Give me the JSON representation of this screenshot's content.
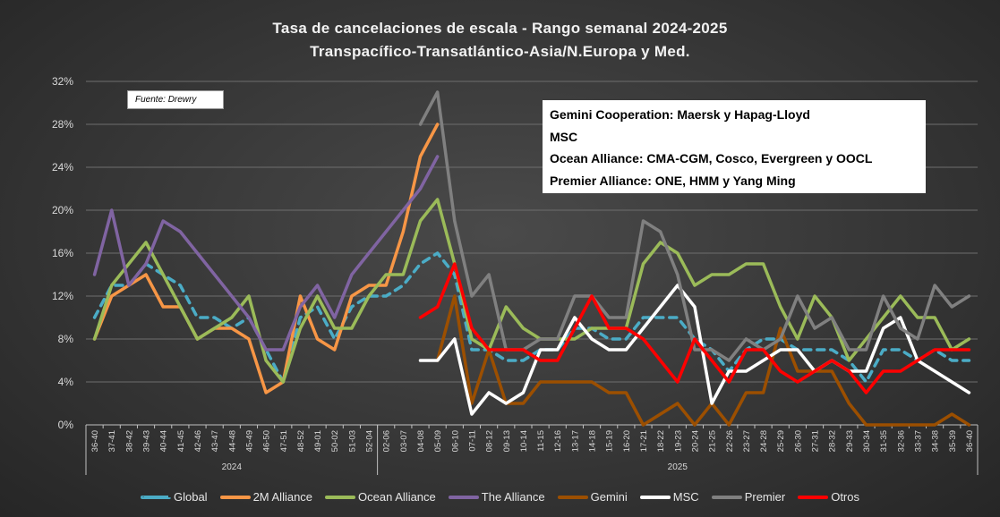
{
  "title": {
    "line1": "Tasa de cancelaciones de escala - Rango semanal 2024-2025",
    "line2": "Transpacífico-Transatlántico-Asia/N.Europa y Med."
  },
  "source_label": "Fuente: Drewry",
  "notes": [
    "Gemini Cooperation: Maersk y Hapag-Lloyd",
    "MSC",
    "Ocean Alliance: CMA-CGM, Cosco, Evergreen y OOCL",
    "Premier Alliance: ONE, HMM y Yang Ming"
  ],
  "chart_data": {
    "type": "line",
    "title": "Tasa de cancelaciones de escala - Rango semanal 2024-2025",
    "subtitle": "Transpacífico-Transatlántico-Asia/N.Europa y Med.",
    "xlabel": "",
    "ylabel": "",
    "ylim": [
      0,
      32
    ],
    "yticks": [
      0,
      4,
      8,
      12,
      16,
      20,
      24,
      28,
      32
    ],
    "ytick_labels": [
      "0%",
      "4%",
      "8%",
      "12%",
      "16%",
      "20%",
      "24%",
      "28%",
      "32%"
    ],
    "grid": true,
    "legend_position": "bottom",
    "categories": [
      "36-40",
      "37-41",
      "38-42",
      "39-43",
      "40-44",
      "41-45",
      "42-46",
      "43-47",
      "44-48",
      "45-49",
      "46-50",
      "47-51",
      "48-52",
      "49-01",
      "50-02",
      "51-03",
      "52-04",
      "02-06",
      "03-07",
      "04-08",
      "05-09",
      "06-10",
      "07-11",
      "08-12",
      "09-13",
      "10-14",
      "11-15",
      "12-16",
      "13-17",
      "14-18",
      "15-19",
      "16-20",
      "17-21",
      "18-22",
      "19-23",
      "20-24",
      "21-25",
      "22-26",
      "23-27",
      "24-28",
      "25-29",
      "26-30",
      "27-31",
      "28-32",
      "29-33",
      "30-34",
      "31-35",
      "32-36",
      "33-37",
      "34-38",
      "35-39",
      "36-40"
    ],
    "year_groups": [
      {
        "label": "2024",
        "start": 0,
        "end": 16
      },
      {
        "label": "2025",
        "start": 17,
        "end": 51
      }
    ],
    "series": [
      {
        "name": "Global",
        "color": "#4bacc6",
        "dashed": true,
        "values": [
          10,
          13,
          13,
          15,
          14,
          13,
          10,
          10,
          9,
          10,
          7,
          4,
          10,
          11,
          8,
          11,
          12,
          12,
          13,
          15,
          16,
          14,
          7,
          7,
          6,
          6,
          7,
          7,
          9,
          9,
          8,
          8,
          10,
          10,
          10,
          8,
          7,
          5,
          7,
          8,
          8,
          7,
          7,
          7,
          6,
          4,
          7,
          7,
          6,
          7,
          6,
          6
        ]
      },
      {
        "name": "2M Alliance",
        "color": "#f79646",
        "dashed": false,
        "values": [
          8,
          12,
          13,
          14,
          11,
          11,
          8,
          9,
          9,
          8,
          3,
          4,
          12,
          8,
          7,
          12,
          13,
          13,
          18,
          25,
          28,
          null,
          null,
          null,
          null,
          null,
          null,
          null,
          null,
          null,
          null,
          null,
          null,
          null,
          null,
          null,
          null,
          null,
          null,
          null,
          null,
          null,
          null,
          null,
          null,
          null,
          null,
          null,
          null,
          null,
          null,
          null
        ]
      },
      {
        "name": "Ocean Alliance",
        "color": "#9bbb59",
        "dashed": false,
        "values": [
          8,
          13,
          15,
          17,
          14,
          11,
          8,
          9,
          10,
          12,
          6,
          4,
          9,
          12,
          9,
          9,
          12,
          14,
          14,
          19,
          21,
          15,
          8,
          7,
          11,
          9,
          8,
          8,
          8,
          9,
          9,
          9,
          15,
          17,
          16,
          13,
          14,
          14,
          15,
          15,
          11,
          8,
          12,
          10,
          6,
          8,
          10,
          12,
          10,
          10,
          7,
          8
        ]
      },
      {
        "name": "The Alliance",
        "color": "#8064a2",
        "dashed": false,
        "values": [
          14,
          20,
          13,
          15,
          19,
          18,
          16,
          14,
          12,
          10,
          7,
          7,
          11,
          13,
          10,
          14,
          16,
          18,
          20,
          22,
          25,
          null,
          null,
          null,
          null,
          null,
          null,
          null,
          null,
          null,
          null,
          null,
          null,
          null,
          null,
          null,
          null,
          null,
          null,
          null,
          null,
          null,
          null,
          null,
          null,
          null,
          null,
          null,
          null,
          null,
          null,
          null
        ]
      },
      {
        "name": "Gemini",
        "color": "#9c4f00",
        "dashed": false,
        "values": [
          null,
          null,
          null,
          null,
          null,
          null,
          null,
          null,
          null,
          null,
          null,
          null,
          null,
          null,
          null,
          null,
          null,
          null,
          null,
          null,
          6,
          12,
          2,
          7,
          2,
          2,
          4,
          4,
          4,
          4,
          3,
          3,
          0,
          1,
          2,
          0,
          2,
          0,
          3,
          3,
          9,
          5,
          5,
          5,
          2,
          0,
          0,
          0,
          0,
          0,
          1,
          0
        ]
      },
      {
        "name": "MSC",
        "color": "#ffffff",
        "dashed": false,
        "values": [
          null,
          null,
          null,
          null,
          null,
          null,
          null,
          null,
          null,
          null,
          null,
          null,
          null,
          null,
          null,
          null,
          null,
          null,
          null,
          6,
          6,
          8,
          1,
          3,
          2,
          3,
          7,
          7,
          10,
          8,
          7,
          7,
          9,
          11,
          13,
          11,
          2,
          5,
          5,
          6,
          7,
          7,
          5,
          6,
          5,
          5,
          9,
          10,
          6,
          5,
          4,
          3
        ]
      },
      {
        "name": "Premier",
        "color": "#808080",
        "dashed": false,
        "values": [
          null,
          null,
          null,
          null,
          null,
          null,
          null,
          null,
          null,
          null,
          null,
          null,
          null,
          null,
          null,
          null,
          null,
          null,
          null,
          28,
          31,
          19,
          12,
          14,
          7,
          7,
          8,
          8,
          12,
          12,
          10,
          10,
          19,
          18,
          14,
          7,
          7,
          6,
          8,
          7,
          8,
          12,
          9,
          10,
          7,
          7,
          12,
          9,
          8,
          13,
          11,
          12
        ]
      },
      {
        "name": "Otros",
        "color": "#ff0000",
        "dashed": false,
        "values": [
          null,
          null,
          null,
          null,
          null,
          null,
          null,
          null,
          null,
          null,
          null,
          null,
          null,
          null,
          null,
          null,
          null,
          null,
          null,
          10,
          11,
          15,
          9,
          7,
          7,
          7,
          6,
          6,
          9,
          12,
          9,
          9,
          8,
          6,
          4,
          8,
          6,
          4,
          7,
          7,
          5,
          4,
          5,
          6,
          5,
          3,
          5,
          5,
          6,
          7,
          7,
          7
        ]
      }
    ]
  }
}
